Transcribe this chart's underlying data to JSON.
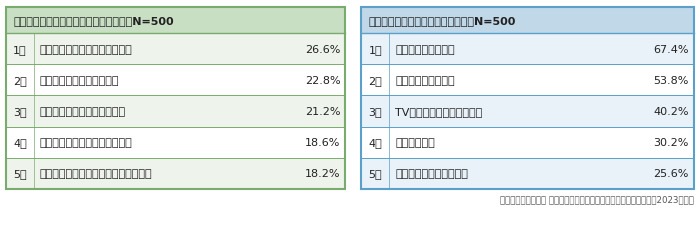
{
  "table1_title": "結婚してよかったと感じる食事の変化　N=500",
  "table1_rows": [
    [
      "1位",
      "一緒に食事をするようになった",
      "26.6%"
    ],
    [
      "2位",
      "食事の時間が楽しくなった",
      "22.8%"
    ],
    [
      "3位",
      "料理のレパートリーが増えた",
      "21.2%"
    ],
    [
      "4位",
      "健康管理ができるようになった",
      "18.6%"
    ],
    [
      "5位",
      "料理ができるように（上手に）なった",
      "18.2%"
    ]
  ],
  "table2_title": "夫婦が自宅で会話するタイミング　N=500",
  "table2_rows": [
    [
      "1位",
      "食事をしているとき",
      "67.4%"
    ],
    [
      "2位",
      "くつろいでいるとき",
      "53.8%"
    ],
    [
      "3位",
      "TV（動画）を見ているとき",
      "40.2%"
    ],
    [
      "4位",
      "就寝前の時間",
      "30.2%"
    ],
    [
      "5位",
      "子どもと一緒にいるとき",
      "25.6%"
    ]
  ],
  "footer": "積水ハウス株式会社 住生活研究所「いい夫婦の日に関する調査　（2023年）」",
  "table1_border_color": "#7aab6e",
  "table2_border_color": "#5aa0c8",
  "header_bg1": "#c8dfc4",
  "header_bg2": "#c0d8e8",
  "row_bg_odd1": "#eef4ec",
  "row_bg_even1": "#ffffff",
  "row_bg_odd2": "#e8f2f8",
  "row_bg_even2": "#ffffff",
  "text_color": "#222222",
  "footer_color": "#555555",
  "bg_color": "#ffffff"
}
